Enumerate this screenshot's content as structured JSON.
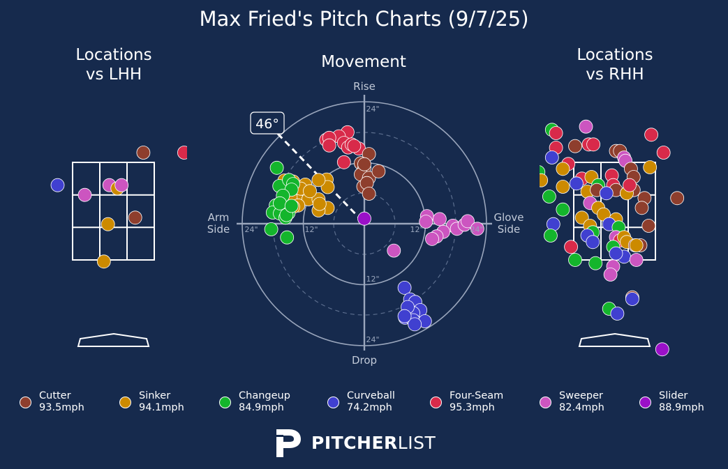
{
  "title": "Max Fried's Pitch Charts (9/7/25)",
  "panels": {
    "lhh_title": "Locations\nvs LHH",
    "movement_title": "Movement",
    "rhh_title": "Locations\nvs RHH"
  },
  "movement_labels": {
    "top": "Rise",
    "bottom": "Drop",
    "left": "Arm\nSide",
    "right": "Glove\nSide",
    "ring_12": "12\"",
    "ring_24": "24\"",
    "arm_angle": "46°"
  },
  "colors": {
    "Cutter": "#8e3e2d",
    "Sinker": "#cc8a00",
    "Changeup": "#14b52c",
    "Curveball": "#4040d0",
    "Four-Seam": "#d82a4a",
    "Sweeper": "#cc55c0",
    "Slider": "#9a10c8"
  },
  "legend": [
    {
      "pitch": "Cutter",
      "name": "Cutter",
      "speed": "93.5mph"
    },
    {
      "pitch": "Sinker",
      "name": "Sinker",
      "speed": "94.1mph"
    },
    {
      "pitch": "Changeup",
      "name": "Changeup",
      "speed": "84.9mph"
    },
    {
      "pitch": "Curveball",
      "name": "Curveball",
      "speed": "74.2mph"
    },
    {
      "pitch": "Four-Seam",
      "name": "Four-Seam",
      "speed": "95.3mph"
    },
    {
      "pitch": "Sweeper",
      "name": "Sweeper",
      "speed": "82.4mph"
    },
    {
      "pitch": "Slider",
      "name": "Slider",
      "speed": "88.9mph"
    }
  ],
  "logo": {
    "bold": "PITCHER",
    "light": "LIST"
  },
  "chart_data": [
    {
      "type": "scatter",
      "name": "lhh_locations",
      "x_units": "strike zone widths from left edge (0-3)",
      "y_units": "strike zone heights from bottom edge (0-3)",
      "points": [
        {
          "pitch": "Cutter",
          "x": 2.6,
          "y": 3.3
        },
        {
          "pitch": "Four-Seam",
          "x": 4.1,
          "y": 3.3
        },
        {
          "pitch": "Curveball",
          "x": -0.55,
          "y": 2.3
        },
        {
          "pitch": "Sweeper",
          "x": 0.45,
          "y": 2.0
        },
        {
          "pitch": "Sweeper",
          "x": 1.35,
          "y": 2.3
        },
        {
          "pitch": "Sinker",
          "x": 1.65,
          "y": 2.2
        },
        {
          "pitch": "Sweeper",
          "x": 1.8,
          "y": 2.3
        },
        {
          "pitch": "Cutter",
          "x": 2.3,
          "y": 1.3
        },
        {
          "pitch": "Sinker",
          "x": 1.3,
          "y": 1.1
        },
        {
          "pitch": "Sinker",
          "x": 1.15,
          "y": -0.05
        }
      ]
    },
    {
      "type": "scatter",
      "name": "movement",
      "x_units": "inches horizontal break (negative = arm side)",
      "y_units": "inches induced vertical break",
      "xlim": [
        -24,
        24
      ],
      "ylim": [
        -24,
        24
      ],
      "rings": [
        12,
        24
      ],
      "arm_angle_deg": 46,
      "points": [
        {
          "pitch": "Four-Seam",
          "x": -3.3,
          "y": 18.0
        },
        {
          "pitch": "Four-Seam",
          "x": -5.0,
          "y": 17.2
        },
        {
          "pitch": "Four-Seam",
          "x": -7.5,
          "y": 16.5
        },
        {
          "pitch": "Four-Seam",
          "x": -6.9,
          "y": 16.9
        },
        {
          "pitch": "Four-Seam",
          "x": -6.9,
          "y": 15.4
        },
        {
          "pitch": "Four-Seam",
          "x": -4.0,
          "y": 15.9
        },
        {
          "pitch": "Four-Seam",
          "x": -3.2,
          "y": 15.0
        },
        {
          "pitch": "Four-Seam",
          "x": -2.5,
          "y": 15.6
        },
        {
          "pitch": "Four-Seam",
          "x": -1.1,
          "y": 14.8
        },
        {
          "pitch": "Four-Seam",
          "x": -2.0,
          "y": 15.3
        },
        {
          "pitch": "Four-Seam",
          "x": -4.0,
          "y": 12.1
        },
        {
          "pitch": "Cutter",
          "x": 0.9,
          "y": 13.7
        },
        {
          "pitch": "Cutter",
          "x": -0.7,
          "y": 11.9
        },
        {
          "pitch": "Cutter",
          "x": 0.0,
          "y": 11.0
        },
        {
          "pitch": "Cutter",
          "x": -0.7,
          "y": 9.7
        },
        {
          "pitch": "Cutter",
          "x": 0.9,
          "y": 9.0
        },
        {
          "pitch": "Cutter",
          "x": -0.2,
          "y": 7.3
        },
        {
          "pitch": "Cutter",
          "x": 0.5,
          "y": 8.0
        },
        {
          "pitch": "Cutter",
          "x": 2.8,
          "y": 10.3
        },
        {
          "pitch": "Cutter",
          "x": 0.9,
          "y": 5.9
        },
        {
          "pitch": "Cutter",
          "x": 0.0,
          "y": 11.7
        },
        {
          "pitch": "Sinker",
          "x": -14.0,
          "y": 8.3
        },
        {
          "pitch": "Sinker",
          "x": -11.6,
          "y": 7.7
        },
        {
          "pitch": "Sinker",
          "x": -7.4,
          "y": 8.7
        },
        {
          "pitch": "Sinker",
          "x": -7.2,
          "y": 7.2
        },
        {
          "pitch": "Sinker",
          "x": -9.0,
          "y": 8.6
        },
        {
          "pitch": "Sinker",
          "x": -12.5,
          "y": 6.1
        },
        {
          "pitch": "Sinker",
          "x": -13.0,
          "y": 4.5
        },
        {
          "pitch": "Sinker",
          "x": -11.0,
          "y": 4.8
        },
        {
          "pitch": "Sinker",
          "x": -12.5,
          "y": 6.9
        },
        {
          "pitch": "Sinker",
          "x": -14.5,
          "y": 5.2
        },
        {
          "pitch": "Sinker",
          "x": -9.0,
          "y": 4.8
        },
        {
          "pitch": "Sinker",
          "x": -8.6,
          "y": 3.6
        },
        {
          "pitch": "Sinker",
          "x": -7.2,
          "y": 3.1
        },
        {
          "pitch": "Sinker",
          "x": -9.0,
          "y": 2.6
        },
        {
          "pitch": "Sinker",
          "x": -8.8,
          "y": 3.9
        },
        {
          "pitch": "Sinker",
          "x": -13.0,
          "y": 3.6
        },
        {
          "pitch": "Sinker",
          "x": -14.0,
          "y": 3.3
        },
        {
          "pitch": "Sinker",
          "x": -15.7,
          "y": 8.5
        },
        {
          "pitch": "Sinker",
          "x": -10.7,
          "y": 6.4
        },
        {
          "pitch": "Changeup",
          "x": -17.2,
          "y": 11.0
        },
        {
          "pitch": "Changeup",
          "x": -16.7,
          "y": 7.4
        },
        {
          "pitch": "Changeup",
          "x": -14.8,
          "y": 8.6
        },
        {
          "pitch": "Changeup",
          "x": -14.0,
          "y": 7.8
        },
        {
          "pitch": "Changeup",
          "x": -14.3,
          "y": 6.7
        },
        {
          "pitch": "Changeup",
          "x": -16.0,
          "y": 5.5
        },
        {
          "pitch": "Changeup",
          "x": -17.4,
          "y": 3.6
        },
        {
          "pitch": "Changeup",
          "x": -18.0,
          "y": 2.2
        },
        {
          "pitch": "Changeup",
          "x": -16.6,
          "y": 2.0
        },
        {
          "pitch": "Changeup",
          "x": -15.5,
          "y": 1.2
        },
        {
          "pitch": "Changeup",
          "x": -14.9,
          "y": 2.1
        },
        {
          "pitch": "Changeup",
          "x": -15.3,
          "y": 1.7
        },
        {
          "pitch": "Changeup",
          "x": -16.6,
          "y": 4.0
        },
        {
          "pitch": "Changeup",
          "x": -18.3,
          "y": -1.1
        },
        {
          "pitch": "Changeup",
          "x": -15.2,
          "y": -2.7
        },
        {
          "pitch": "Changeup",
          "x": -14.3,
          "y": 3.5
        },
        {
          "pitch": "Sweeper",
          "x": 12.3,
          "y": 1.5
        },
        {
          "pitch": "Sweeper",
          "x": 14.8,
          "y": 0.9
        },
        {
          "pitch": "Sweeper",
          "x": 17.4,
          "y": -0.4
        },
        {
          "pitch": "Sweeper",
          "x": 15.5,
          "y": -1.6
        },
        {
          "pitch": "Sweeper",
          "x": 14.2,
          "y": -2.5
        },
        {
          "pitch": "Sweeper",
          "x": 13.3,
          "y": -3.0
        },
        {
          "pitch": "Sweeper",
          "x": 12.1,
          "y": 0.4
        },
        {
          "pitch": "Sweeper",
          "x": 18.2,
          "y": -1.0
        },
        {
          "pitch": "Sweeper",
          "x": 19.7,
          "y": -0.2
        },
        {
          "pitch": "Sweeper",
          "x": 20.3,
          "y": 0.5
        },
        {
          "pitch": "Sweeper",
          "x": 22.2,
          "y": -1.0
        },
        {
          "pitch": "Sweeper",
          "x": 5.8,
          "y": -5.3
        },
        {
          "pitch": "Slider",
          "x": 0.0,
          "y": 1.0
        },
        {
          "pitch": "Curveball",
          "x": 7.9,
          "y": -12.6
        },
        {
          "pitch": "Curveball",
          "x": 9.0,
          "y": -14.9
        },
        {
          "pitch": "Curveball",
          "x": 10.0,
          "y": -15.4
        },
        {
          "pitch": "Curveball",
          "x": 11.0,
          "y": -17.0
        },
        {
          "pitch": "Curveball",
          "x": 9.6,
          "y": -17.6
        },
        {
          "pitch": "Curveball",
          "x": 8.0,
          "y": -18.5
        },
        {
          "pitch": "Curveball",
          "x": 9.6,
          "y": -19.0
        },
        {
          "pitch": "Curveball",
          "x": 11.9,
          "y": -19.2
        },
        {
          "pitch": "Curveball",
          "x": 9.9,
          "y": -19.8
        },
        {
          "pitch": "Curveball",
          "x": 8.5,
          "y": -16.4
        },
        {
          "pitch": "Curveball",
          "x": 7.9,
          "y": -18.2
        }
      ]
    },
    {
      "type": "scatter",
      "name": "rhh_locations",
      "x_units": "strike zone widths from left edge (0-3)",
      "y_units": "strike zone heights from bottom edge (0-3)",
      "points": [
        {
          "pitch": "Changeup",
          "x": -0.8,
          "y": 4.0
        },
        {
          "pitch": "Four-Seam",
          "x": -0.65,
          "y": 3.9
        },
        {
          "pitch": "Sweeper",
          "x": 0.45,
          "y": 4.1
        },
        {
          "pitch": "Four-Seam",
          "x": 0.55,
          "y": 3.55
        },
        {
          "pitch": "Four-Seam",
          "x": 0.72,
          "y": 3.55
        },
        {
          "pitch": "Cutter",
          "x": 0.05,
          "y": 3.5
        },
        {
          "pitch": "Four-Seam",
          "x": -0.65,
          "y": 3.45
        },
        {
          "pitch": "Four-Seam",
          "x": 2.85,
          "y": 3.85
        },
        {
          "pitch": "Four-Seam",
          "x": 3.3,
          "y": 3.3
        },
        {
          "pitch": "Cutter",
          "x": 1.55,
          "y": 3.35
        },
        {
          "pitch": "Cutter",
          "x": 1.7,
          "y": 3.35
        },
        {
          "pitch": "Sweeper",
          "x": 1.85,
          "y": 3.15
        },
        {
          "pitch": "Sweeper",
          "x": 1.9,
          "y": 3.05
        },
        {
          "pitch": "Curveball",
          "x": -0.8,
          "y": 3.15
        },
        {
          "pitch": "Four-Seam",
          "x": -0.2,
          "y": 2.95
        },
        {
          "pitch": "Sinker",
          "x": -0.4,
          "y": 2.8
        },
        {
          "pitch": "Sinker",
          "x": 2.8,
          "y": 2.85
        },
        {
          "pitch": "Changeup",
          "x": -1.3,
          "y": 2.7
        },
        {
          "pitch": "Sinker",
          "x": -1.2,
          "y": 2.45
        },
        {
          "pitch": "Sinker",
          "x": -0.4,
          "y": 2.25
        },
        {
          "pitch": "Four-Seam",
          "x": 0.3,
          "y": 2.5
        },
        {
          "pitch": "Curveball",
          "x": 0.1,
          "y": 2.35
        },
        {
          "pitch": "Sinker",
          "x": 0.65,
          "y": 2.55
        },
        {
          "pitch": "Changeup",
          "x": 0.9,
          "y": 2.3
        },
        {
          "pitch": "Four-Seam",
          "x": 1.4,
          "y": 2.6
        },
        {
          "pitch": "Four-Seam",
          "x": 1.45,
          "y": 2.3
        },
        {
          "pitch": "Sinker",
          "x": 0.5,
          "y": 2.1
        },
        {
          "pitch": "Cutter",
          "x": 0.85,
          "y": 2.15
        },
        {
          "pitch": "Cutter",
          "x": 1.55,
          "y": 2.15
        },
        {
          "pitch": "Cutter",
          "x": 1.95,
          "y": 2.05
        },
        {
          "pitch": "Cutter",
          "x": 2.2,
          "y": 2.15
        },
        {
          "pitch": "Cutter",
          "x": 2.1,
          "y": 2.8
        },
        {
          "pitch": "Cutter",
          "x": 2.2,
          "y": 2.55
        },
        {
          "pitch": "Sinker",
          "x": 1.95,
          "y": 2.05
        },
        {
          "pitch": "Four-Seam",
          "x": 2.05,
          "y": 2.3
        },
        {
          "pitch": "Curveball",
          "x": 1.2,
          "y": 2.05
        },
        {
          "pitch": "Sweeper",
          "x": 0.6,
          "y": 1.75
        },
        {
          "pitch": "Sinker",
          "x": 0.9,
          "y": 1.6
        },
        {
          "pitch": "Cutter",
          "x": 2.6,
          "y": 1.9
        },
        {
          "pitch": "Cutter",
          "x": 2.5,
          "y": 1.6
        },
        {
          "pitch": "Cutter",
          "x": 3.8,
          "y": 1.9
        },
        {
          "pitch": "Changeup",
          "x": -0.9,
          "y": 1.95
        },
        {
          "pitch": "Changeup",
          "x": -0.4,
          "y": 1.55
        },
        {
          "pitch": "Sinker",
          "x": 0.3,
          "y": 1.3
        },
        {
          "pitch": "Sinker",
          "x": 1.1,
          "y": 1.4
        },
        {
          "pitch": "Sinker",
          "x": 1.55,
          "y": 1.25
        },
        {
          "pitch": "Curveball",
          "x": -0.75,
          "y": 1.1
        },
        {
          "pitch": "Sinker",
          "x": 0.6,
          "y": 1.05
        },
        {
          "pitch": "Curveball",
          "x": 1.3,
          "y": 1.1
        },
        {
          "pitch": "Changeup",
          "x": 0.7,
          "y": 0.85
        },
        {
          "pitch": "Changeup",
          "x": 1.65,
          "y": 1.0
        },
        {
          "pitch": "Cutter",
          "x": 2.75,
          "y": 1.05
        },
        {
          "pitch": "Changeup",
          "x": -0.85,
          "y": 0.75
        },
        {
          "pitch": "Curveball",
          "x": 0.5,
          "y": 0.75
        },
        {
          "pitch": "Sweeper",
          "x": 1.55,
          "y": 0.7
        },
        {
          "pitch": "Four-Seam",
          "x": 1.7,
          "y": 0.6
        },
        {
          "pitch": "Sinker",
          "x": 1.85,
          "y": 0.7
        },
        {
          "pitch": "Sinker",
          "x": 1.95,
          "y": 0.55
        },
        {
          "pitch": "Changeup",
          "x": 1.45,
          "y": 0.4
        },
        {
          "pitch": "Cutter",
          "x": 2.25,
          "y": 0.45
        },
        {
          "pitch": "Cutter",
          "x": 2.45,
          "y": 0.45
        },
        {
          "pitch": "Curveball",
          "x": 0.7,
          "y": 0.55
        },
        {
          "pitch": "Sinker",
          "x": 2.3,
          "y": 0.45
        },
        {
          "pitch": "Four-Seam",
          "x": -0.1,
          "y": 0.4
        },
        {
          "pitch": "Curveball",
          "x": 1.85,
          "y": 0.1
        },
        {
          "pitch": "Curveball",
          "x": 1.55,
          "y": 0.2
        },
        {
          "pitch": "Sweeper",
          "x": 1.45,
          "y": -0.2
        },
        {
          "pitch": "Sweeper",
          "x": 2.3,
          "y": 0.0
        },
        {
          "pitch": "Changeup",
          "x": 0.05,
          "y": 0.0
        },
        {
          "pitch": "Changeup",
          "x": 0.8,
          "y": -0.1
        },
        {
          "pitch": "Sweeper",
          "x": 1.35,
          "y": -0.45
        },
        {
          "pitch": "Cutter",
          "x": 2.15,
          "y": -1.15
        },
        {
          "pitch": "Curveball",
          "x": 2.15,
          "y": -1.2
        },
        {
          "pitch": "Changeup",
          "x": 1.3,
          "y": -1.5
        },
        {
          "pitch": "Curveball",
          "x": 1.6,
          "y": -1.65
        },
        {
          "pitch": "Slider",
          "x": 3.25,
          "y": -2.75
        }
      ]
    }
  ]
}
